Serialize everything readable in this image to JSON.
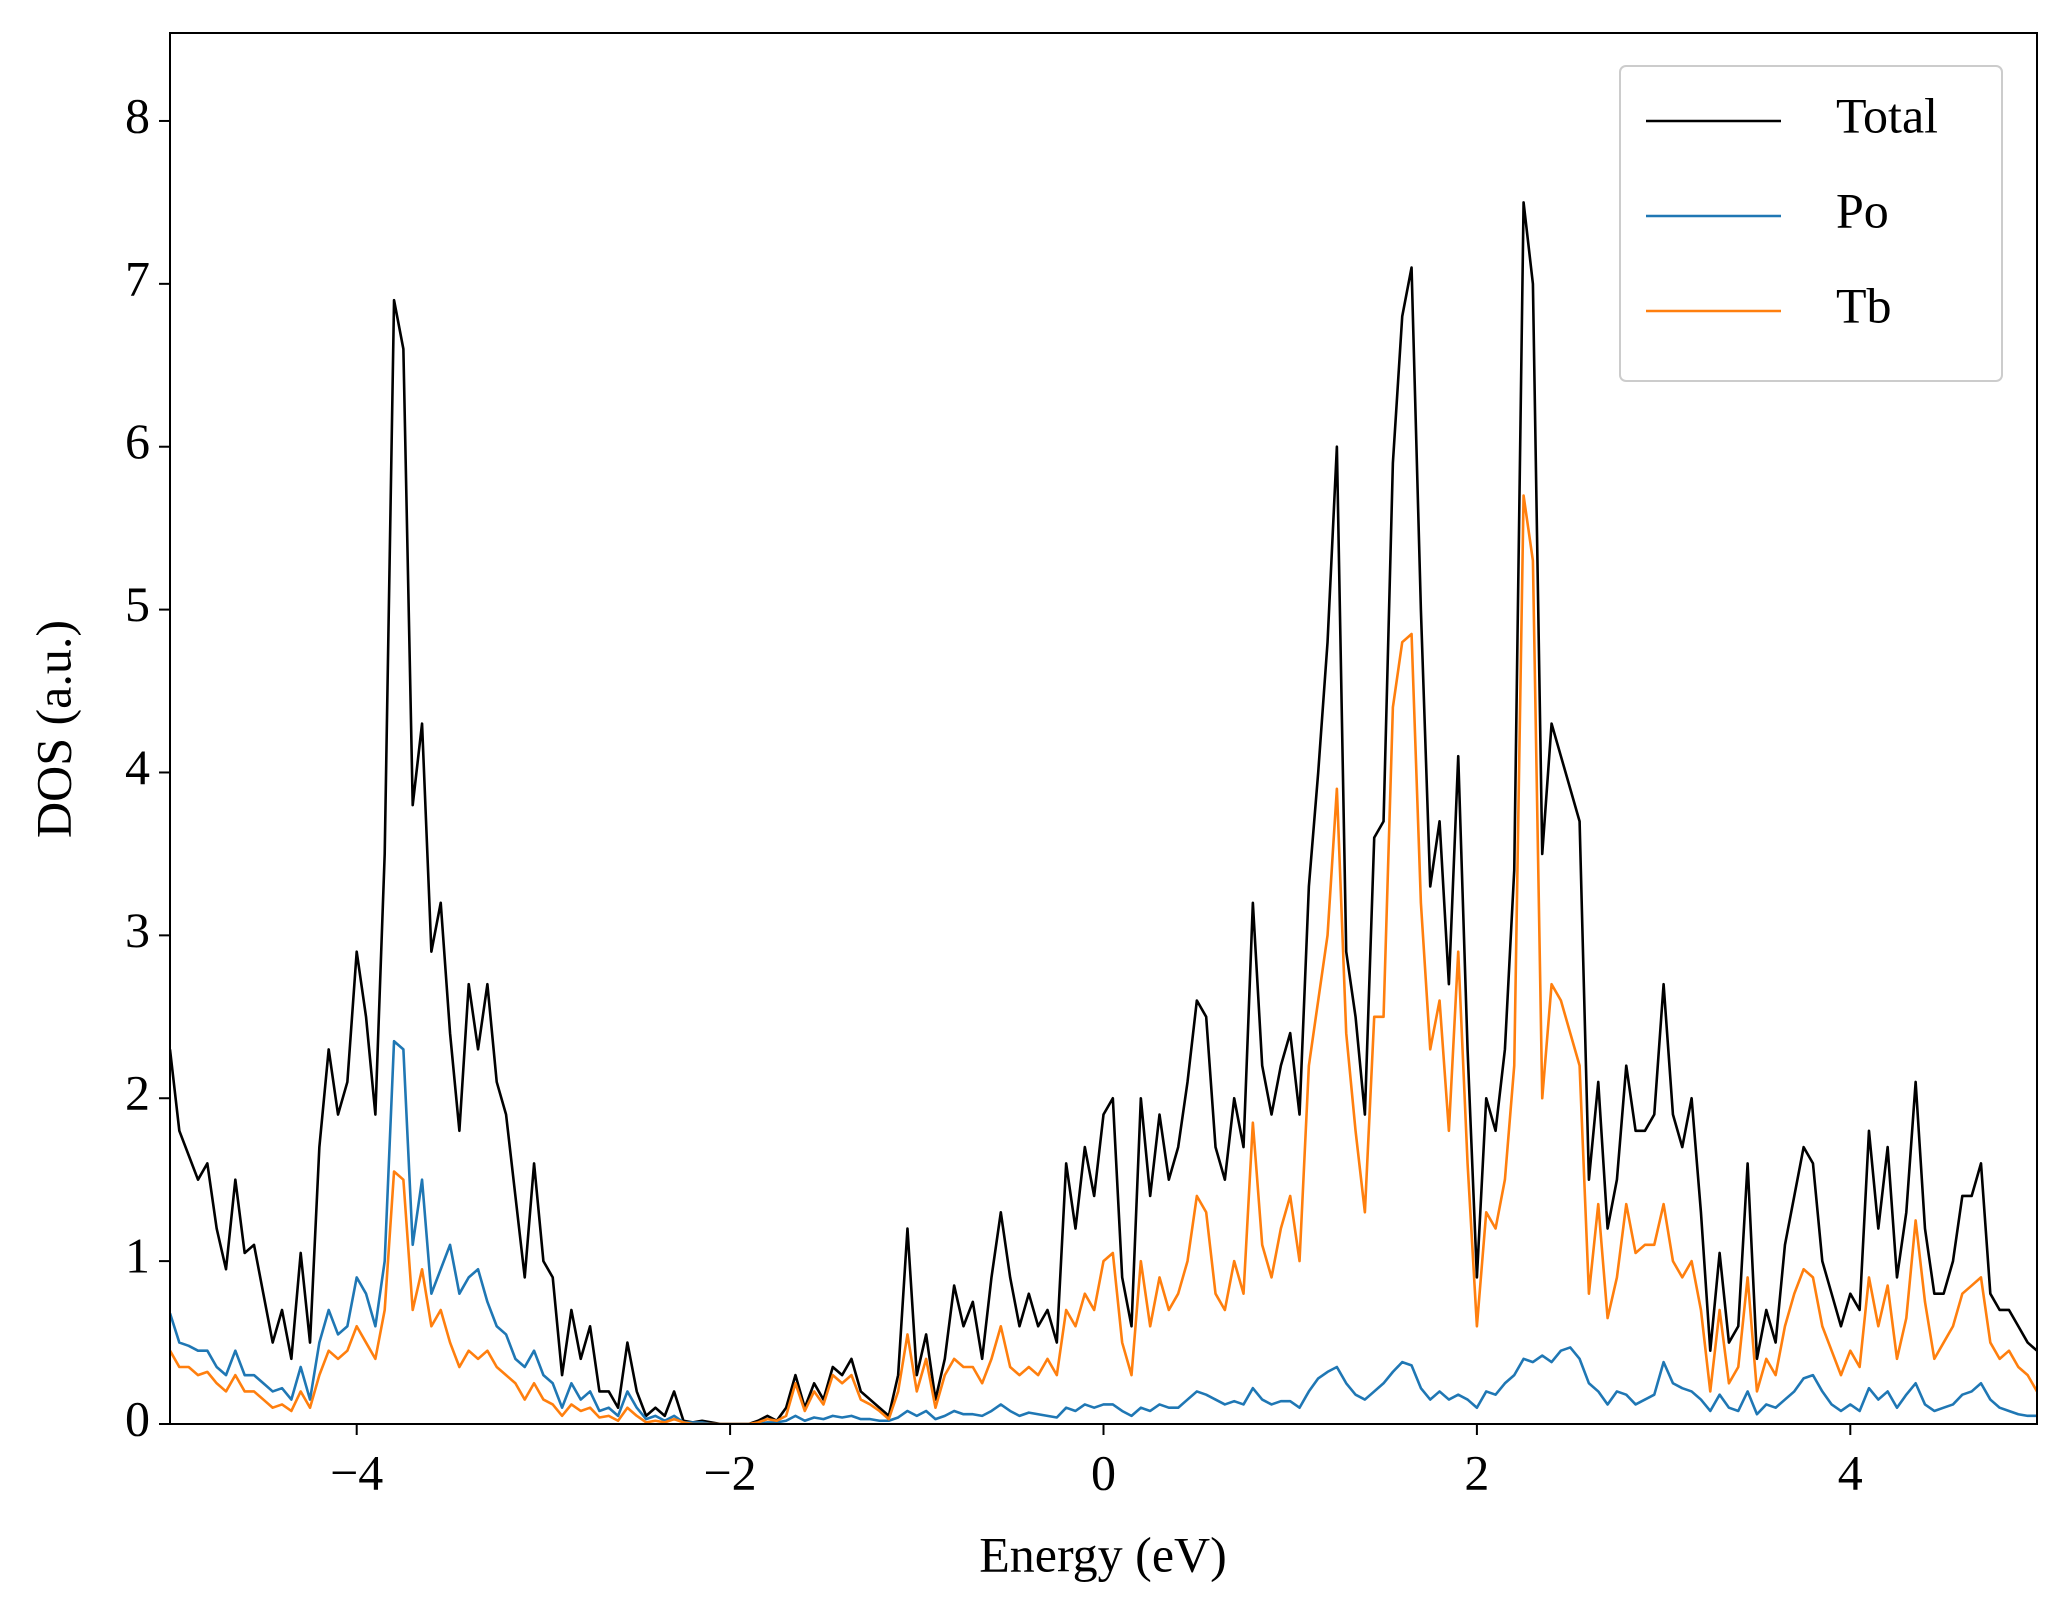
{
  "chart_data": {
    "type": "line",
    "xlabel": "Energy (eV)",
    "ylabel": "DOS (a.u.)",
    "xlim": [
      -5,
      5
    ],
    "ylim": [
      0,
      8.54
    ],
    "xticks": [
      {
        "value": -4,
        "label": "−4"
      },
      {
        "value": -2,
        "label": "−2"
      },
      0,
      2,
      4
    ],
    "yticks": [
      0,
      1,
      2,
      3,
      4,
      5,
      6,
      7,
      8
    ],
    "legend": "upper right",
    "grid": false,
    "x": [
      -5,
      -4.95,
      -4.9,
      -4.85,
      -4.8,
      -4.75,
      -4.7,
      -4.65,
      -4.6,
      -4.55,
      -4.5,
      -4.45,
      -4.4,
      -4.35,
      -4.3,
      -4.25,
      -4.2,
      -4.15,
      -4.1,
      -4.05,
      -4,
      -3.95,
      -3.9,
      -3.85,
      -3.8,
      -3.75,
      -3.7,
      -3.65,
      -3.6,
      -3.55,
      -3.5,
      -3.45,
      -3.4,
      -3.35,
      -3.3,
      -3.25,
      -3.2,
      -3.15,
      -3.1,
      -3.05,
      -3,
      -2.95,
      -2.9,
      -2.85,
      -2.8,
      -2.75,
      -2.7,
      -2.65,
      -2.6,
      -2.55,
      -2.5,
      -2.45,
      -2.4,
      -2.35,
      -2.3,
      -2.25,
      -2.2,
      -2.15,
      -2.1,
      -2.05,
      -2,
      -1.95,
      -1.9,
      -1.85,
      -1.8,
      -1.75,
      -1.7,
      -1.65,
      -1.6,
      -1.55,
      -1.5,
      -1.45,
      -1.4,
      -1.35,
      -1.3,
      -1.25,
      -1.2,
      -1.15,
      -1.1,
      -1.05,
      -1,
      -0.95,
      -0.9,
      -0.85,
      -0.8,
      -0.75,
      -0.7,
      -0.65,
      -0.6,
      -0.55,
      -0.5,
      -0.45,
      -0.4,
      -0.35,
      -0.3,
      -0.25,
      -0.2,
      -0.15,
      -0.1,
      -0.05,
      0,
      0.05,
      0.1,
      0.15,
      0.2,
      0.25,
      0.3,
      0.35,
      0.4,
      0.45,
      0.5,
      0.55,
      0.6,
      0.65,
      0.7,
      0.75,
      0.8,
      0.85,
      0.9,
      0.95,
      1,
      1.05,
      1.1,
      1.15,
      1.2,
      1.25,
      1.3,
      1.35,
      1.4,
      1.45,
      1.5,
      1.55,
      1.6,
      1.65,
      1.7,
      1.75,
      1.8,
      1.85,
      1.9,
      1.95,
      2,
      2.05,
      2.1,
      2.15,
      2.2,
      2.25,
      2.3,
      2.35,
      2.4,
      2.45,
      2.5,
      2.55,
      2.6,
      2.65,
      2.7,
      2.75,
      2.8,
      2.85,
      2.9,
      2.95,
      3,
      3.05,
      3.1,
      3.15,
      3.2,
      3.25,
      3.3,
      3.35,
      3.4,
      3.45,
      3.5,
      3.55,
      3.6,
      3.65,
      3.7,
      3.75,
      3.8,
      3.85,
      3.9,
      3.95,
      4,
      4.05,
      4.1,
      4.15,
      4.2,
      4.25,
      4.3,
      4.35,
      4.4,
      4.45,
      4.5,
      4.55,
      4.6,
      4.65,
      4.7,
      4.75,
      4.8,
      4.85,
      4.9,
      4.95,
      5
    ],
    "series": [
      {
        "name": "Total",
        "color": "#000000",
        "values": [
          2.3,
          1.8,
          1.65,
          1.5,
          1.6,
          1.2,
          0.95,
          1.5,
          1.05,
          1.1,
          0.8,
          0.5,
          0.7,
          0.4,
          1.05,
          0.5,
          1.7,
          2.3,
          1.9,
          2.1,
          2.9,
          2.5,
          1.9,
          3.5,
          6.9,
          6.6,
          3.8,
          4.3,
          2.9,
          3.2,
          2.4,
          1.8,
          2.7,
          2.3,
          2.7,
          2.1,
          1.9,
          1.4,
          0.9,
          1.6,
          1.0,
          0.9,
          0.3,
          0.7,
          0.4,
          0.6,
          0.2,
          0.2,
          0.1,
          0.5,
          0.2,
          0.05,
          0.1,
          0.05,
          0.2,
          0.02,
          0.01,
          0.02,
          0.01,
          0,
          0,
          0,
          0,
          0.02,
          0.05,
          0.02,
          0.1,
          0.3,
          0.1,
          0.25,
          0.15,
          0.35,
          0.3,
          0.4,
          0.2,
          0.15,
          0.1,
          0.05,
          0.3,
          1.2,
          0.3,
          0.55,
          0.15,
          0.4,
          0.85,
          0.6,
          0.75,
          0.4,
          0.9,
          1.3,
          0.9,
          0.6,
          0.8,
          0.6,
          0.7,
          0.5,
          1.6,
          1.2,
          1.7,
          1.4,
          1.9,
          2.0,
          0.9,
          0.6,
          2.0,
          1.4,
          1.9,
          1.5,
          1.7,
          2.1,
          2.6,
          2.5,
          1.7,
          1.5,
          2.0,
          1.7,
          3.2,
          2.2,
          1.9,
          2.2,
          2.4,
          1.9,
          3.3,
          4.0,
          4.8,
          6.0,
          2.9,
          2.5,
          1.9,
          3.6,
          3.7,
          5.9,
          6.8,
          7.1,
          5.0,
          3.3,
          3.7,
          2.7,
          4.1,
          2.3,
          0.9,
          2.0,
          1.8,
          2.3,
          3.4,
          7.5,
          7.0,
          3.5,
          4.3,
          4.1,
          3.9,
          3.7,
          1.5,
          2.1,
          1.2,
          1.5,
          2.2,
          1.8,
          1.8,
          1.9,
          2.7,
          1.9,
          1.7,
          2.0,
          1.3,
          0.45,
          1.05,
          0.5,
          0.6,
          1.6,
          0.4,
          0.7,
          0.5,
          1.1,
          1.4,
          1.7,
          1.6,
          1.0,
          0.8,
          0.6,
          0.8,
          0.7,
          1.8,
          1.2,
          1.7,
          0.9,
          1.3,
          2.1,
          1.2,
          0.8,
          0.8,
          1.0,
          1.4,
          1.4,
          1.6,
          0.8,
          0.7,
          0.7,
          0.6,
          0.5,
          0.45
        ]
      },
      {
        "name": "Po",
        "color": "#1f77b4",
        "values": [
          0.68,
          0.5,
          0.48,
          0.45,
          0.45,
          0.35,
          0.3,
          0.45,
          0.3,
          0.3,
          0.25,
          0.2,
          0.22,
          0.15,
          0.35,
          0.15,
          0.5,
          0.7,
          0.55,
          0.6,
          0.9,
          0.8,
          0.6,
          1.0,
          2.35,
          2.3,
          1.1,
          1.5,
          0.8,
          0.95,
          1.1,
          0.8,
          0.9,
          0.95,
          0.75,
          0.6,
          0.55,
          0.4,
          0.35,
          0.45,
          0.3,
          0.25,
          0.1,
          0.25,
          0.15,
          0.2,
          0.08,
          0.1,
          0.05,
          0.2,
          0.1,
          0.03,
          0.05,
          0.02,
          0.05,
          0.01,
          0.01,
          0.01,
          0,
          0,
          0,
          0,
          0,
          0,
          0.01,
          0.01,
          0.02,
          0.05,
          0.02,
          0.04,
          0.03,
          0.05,
          0.04,
          0.05,
          0.03,
          0.03,
          0.02,
          0.02,
          0.04,
          0.08,
          0.05,
          0.08,
          0.03,
          0.05,
          0.08,
          0.06,
          0.06,
          0.05,
          0.08,
          0.12,
          0.08,
          0.05,
          0.07,
          0.06,
          0.05,
          0.04,
          0.1,
          0.08,
          0.12,
          0.1,
          0.12,
          0.12,
          0.08,
          0.05,
          0.1,
          0.08,
          0.12,
          0.1,
          0.1,
          0.15,
          0.2,
          0.18,
          0.15,
          0.12,
          0.14,
          0.12,
          0.22,
          0.15,
          0.12,
          0.14,
          0.14,
          0.1,
          0.2,
          0.28,
          0.32,
          0.35,
          0.25,
          0.18,
          0.15,
          0.2,
          0.25,
          0.32,
          0.38,
          0.36,
          0.22,
          0.15,
          0.2,
          0.15,
          0.18,
          0.15,
          0.1,
          0.2,
          0.18,
          0.25,
          0.3,
          0.4,
          0.38,
          0.42,
          0.38,
          0.45,
          0.47,
          0.4,
          0.25,
          0.2,
          0.12,
          0.2,
          0.18,
          0.12,
          0.15,
          0.18,
          0.38,
          0.25,
          0.22,
          0.2,
          0.15,
          0.08,
          0.18,
          0.1,
          0.08,
          0.2,
          0.06,
          0.12,
          0.1,
          0.15,
          0.2,
          0.28,
          0.3,
          0.2,
          0.12,
          0.08,
          0.12,
          0.08,
          0.22,
          0.15,
          0.2,
          0.1,
          0.18,
          0.25,
          0.12,
          0.08,
          0.1,
          0.12,
          0.18,
          0.2,
          0.25,
          0.15,
          0.1,
          0.08,
          0.06,
          0.05,
          0.05
        ]
      },
      {
        "name": "Tb",
        "color": "#ff7f0e",
        "values": [
          0.45,
          0.35,
          0.35,
          0.3,
          0.32,
          0.25,
          0.2,
          0.3,
          0.2,
          0.2,
          0.15,
          0.1,
          0.12,
          0.08,
          0.2,
          0.1,
          0.3,
          0.45,
          0.4,
          0.45,
          0.6,
          0.5,
          0.4,
          0.7,
          1.55,
          1.5,
          0.7,
          0.95,
          0.6,
          0.7,
          0.5,
          0.35,
          0.45,
          0.4,
          0.45,
          0.35,
          0.3,
          0.25,
          0.15,
          0.25,
          0.15,
          0.12,
          0.05,
          0.12,
          0.08,
          0.1,
          0.04,
          0.05,
          0.02,
          0.1,
          0.05,
          0.01,
          0.02,
          0.01,
          0.03,
          0.01,
          0,
          0,
          0,
          0,
          0,
          0,
          0,
          0.01,
          0.03,
          0.02,
          0.05,
          0.25,
          0.08,
          0.2,
          0.12,
          0.3,
          0.25,
          0.3,
          0.15,
          0.12,
          0.08,
          0.03,
          0.2,
          0.55,
          0.2,
          0.4,
          0.1,
          0.3,
          0.4,
          0.35,
          0.35,
          0.25,
          0.4,
          0.6,
          0.35,
          0.3,
          0.35,
          0.3,
          0.4,
          0.3,
          0.7,
          0.6,
          0.8,
          0.7,
          1.0,
          1.05,
          0.5,
          0.3,
          1.0,
          0.6,
          0.9,
          0.7,
          0.8,
          1.0,
          1.4,
          1.3,
          0.8,
          0.7,
          1.0,
          0.8,
          1.85,
          1.1,
          0.9,
          1.2,
          1.4,
          1.0,
          2.2,
          2.6,
          3.0,
          3.9,
          2.4,
          1.8,
          1.3,
          2.5,
          2.5,
          4.4,
          4.8,
          4.85,
          3.2,
          2.3,
          2.6,
          1.8,
          2.9,
          1.6,
          0.6,
          1.3,
          1.2,
          1.5,
          2.2,
          5.7,
          5.3,
          2.0,
          2.7,
          2.6,
          2.4,
          2.2,
          0.8,
          1.35,
          0.65,
          0.9,
          1.35,
          1.05,
          1.1,
          1.1,
          1.35,
          1.0,
          0.9,
          1.0,
          0.7,
          0.2,
          0.7,
          0.25,
          0.35,
          0.9,
          0.2,
          0.4,
          0.3,
          0.6,
          0.8,
          0.95,
          0.9,
          0.6,
          0.45,
          0.3,
          0.45,
          0.35,
          0.9,
          0.6,
          0.85,
          0.4,
          0.65,
          1.25,
          0.75,
          0.4,
          0.5,
          0.6,
          0.8,
          0.85,
          0.9,
          0.5,
          0.4,
          0.45,
          0.35,
          0.3,
          0.2
        ]
      }
    ]
  }
}
